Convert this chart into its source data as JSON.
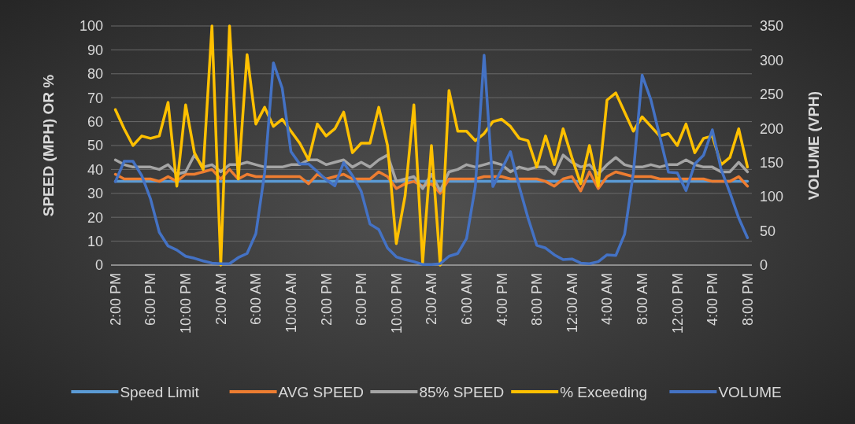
{
  "chart_data": {
    "type": "line",
    "categories": [
      "2:00 PM",
      null,
      null,
      null,
      "6:00 PM",
      null,
      null,
      null,
      "10:00 PM",
      null,
      null,
      null,
      "2:00 AM",
      null,
      null,
      null,
      "6:00 AM",
      null,
      null,
      null,
      "10:00 AM",
      null,
      null,
      null,
      "2:00 PM",
      null,
      null,
      null,
      "6:00 PM",
      null,
      null,
      null,
      "10:00 PM",
      null,
      null,
      null,
      "2:00 AM",
      null,
      null,
      null,
      "6:00 AM",
      null,
      null,
      null,
      "4:00 PM",
      null,
      null,
      null,
      "8:00 PM",
      null,
      null,
      null,
      "12:00 AM",
      null,
      null,
      null,
      "4:00 AM",
      null,
      null,
      null,
      "8:00 AM",
      null,
      null,
      null,
      "12:00 PM",
      null,
      null,
      null,
      "4:00 PM",
      null,
      null,
      null,
      "8:00 PM"
    ],
    "ylabel": "SPEED (MPH) OR %",
    "y2label": "VOLUME (VPH)",
    "ylim": [
      0,
      100
    ],
    "yticks": [
      0,
      10,
      20,
      30,
      40,
      50,
      60,
      70,
      80,
      90,
      100
    ],
    "y2lim": [
      0,
      350
    ],
    "y2ticks": [
      0,
      50,
      100,
      150,
      200,
      250,
      300,
      350
    ],
    "grid": "y",
    "legend": "bottom",
    "series": [
      {
        "name": "Speed Limit",
        "color": "#5b9bd5",
        "values": [
          35,
          35,
          35,
          35,
          35,
          35,
          35,
          35,
          35,
          35,
          35,
          35,
          35,
          35,
          35,
          35,
          35,
          35,
          35,
          35,
          35,
          35,
          35,
          35,
          35,
          35,
          35,
          35,
          35,
          35,
          35,
          35,
          35,
          35,
          35,
          35,
          35,
          35,
          35,
          35,
          35,
          35,
          35,
          35,
          35,
          35,
          35,
          35,
          35,
          35,
          35,
          35,
          35,
          35,
          35,
          35,
          35,
          35,
          35,
          35,
          35,
          35,
          35,
          35,
          35,
          35,
          35,
          35,
          35,
          35,
          35,
          35,
          35
        ]
      },
      {
        "name": "AVG SPEED",
        "color": "#ed7d31",
        "values": [
          38,
          36,
          36,
          36,
          36,
          35,
          37,
          35,
          38,
          38,
          39,
          40,
          36,
          40,
          36,
          38,
          37,
          37,
          37,
          37,
          37,
          37,
          34,
          38,
          36,
          37,
          38,
          36,
          36,
          36,
          39,
          37,
          32,
          34,
          35,
          33,
          34,
          30,
          36,
          36,
          36,
          36,
          37,
          37,
          37,
          36,
          36,
          36,
          36,
          35,
          33,
          36,
          37,
          31,
          39,
          32,
          37,
          39,
          38,
          37,
          37,
          37,
          36,
          36,
          36,
          36,
          36,
          36,
          35,
          35,
          35,
          37,
          33
        ]
      },
      {
        "name": "85% SPEED",
        "color": "#a5a5a5",
        "values": [
          44,
          42,
          41,
          41,
          41,
          40,
          42,
          38,
          39,
          46,
          41,
          42,
          39,
          42,
          42,
          43,
          42,
          41,
          41,
          41,
          42,
          42,
          44,
          44,
          42,
          43,
          44,
          41,
          43,
          41,
          44,
          46,
          35,
          36,
          37,
          32,
          38,
          31,
          39,
          40,
          42,
          41,
          42,
          43,
          42,
          39,
          41,
          40,
          41,
          41,
          38,
          46,
          43,
          41,
          42,
          38,
          42,
          45,
          42,
          41,
          41,
          42,
          41,
          42,
          42,
          44,
          42,
          41,
          41,
          39,
          39,
          43,
          39
        ]
      },
      {
        "name": "% Exceeding",
        "color": "#ffc000",
        "values": [
          65,
          57,
          50,
          54,
          53,
          54,
          68,
          33,
          67,
          47,
          40,
          100,
          0,
          100,
          36,
          88,
          59,
          66,
          58,
          61,
          56,
          51,
          44,
          59,
          54,
          57,
          64,
          47,
          51,
          51,
          66,
          50,
          9,
          29,
          67,
          1,
          50,
          0,
          73,
          56,
          56,
          52,
          55,
          60,
          61,
          58,
          53,
          52,
          41,
          54,
          42,
          57,
          45,
          34,
          50,
          33,
          69,
          72,
          64,
          56,
          62,
          58,
          54,
          55,
          50,
          59,
          47,
          53,
          54,
          42,
          45,
          57,
          41
        ]
      },
      {
        "name": "VOLUME",
        "color": "#4472c4",
        "axis": "y2",
        "values": [
          122,
          152,
          152,
          131,
          97,
          48,
          28,
          22,
          13,
          10,
          6,
          3,
          2,
          2,
          11,
          17,
          46,
          135,
          296,
          259,
          166,
          148,
          148,
          137,
          125,
          116,
          150,
          131,
          108,
          60,
          52,
          25,
          12,
          8,
          5,
          1,
          1,
          2,
          13,
          17,
          39,
          115,
          307,
          115,
          140,
          166,
          115,
          69,
          29,
          25,
          15,
          8,
          9,
          3,
          2,
          5,
          15,
          14,
          45,
          135,
          278,
          242,
          189,
          136,
          135,
          109,
          148,
          161,
          198,
          140,
          106,
          69,
          40
        ]
      }
    ]
  }
}
